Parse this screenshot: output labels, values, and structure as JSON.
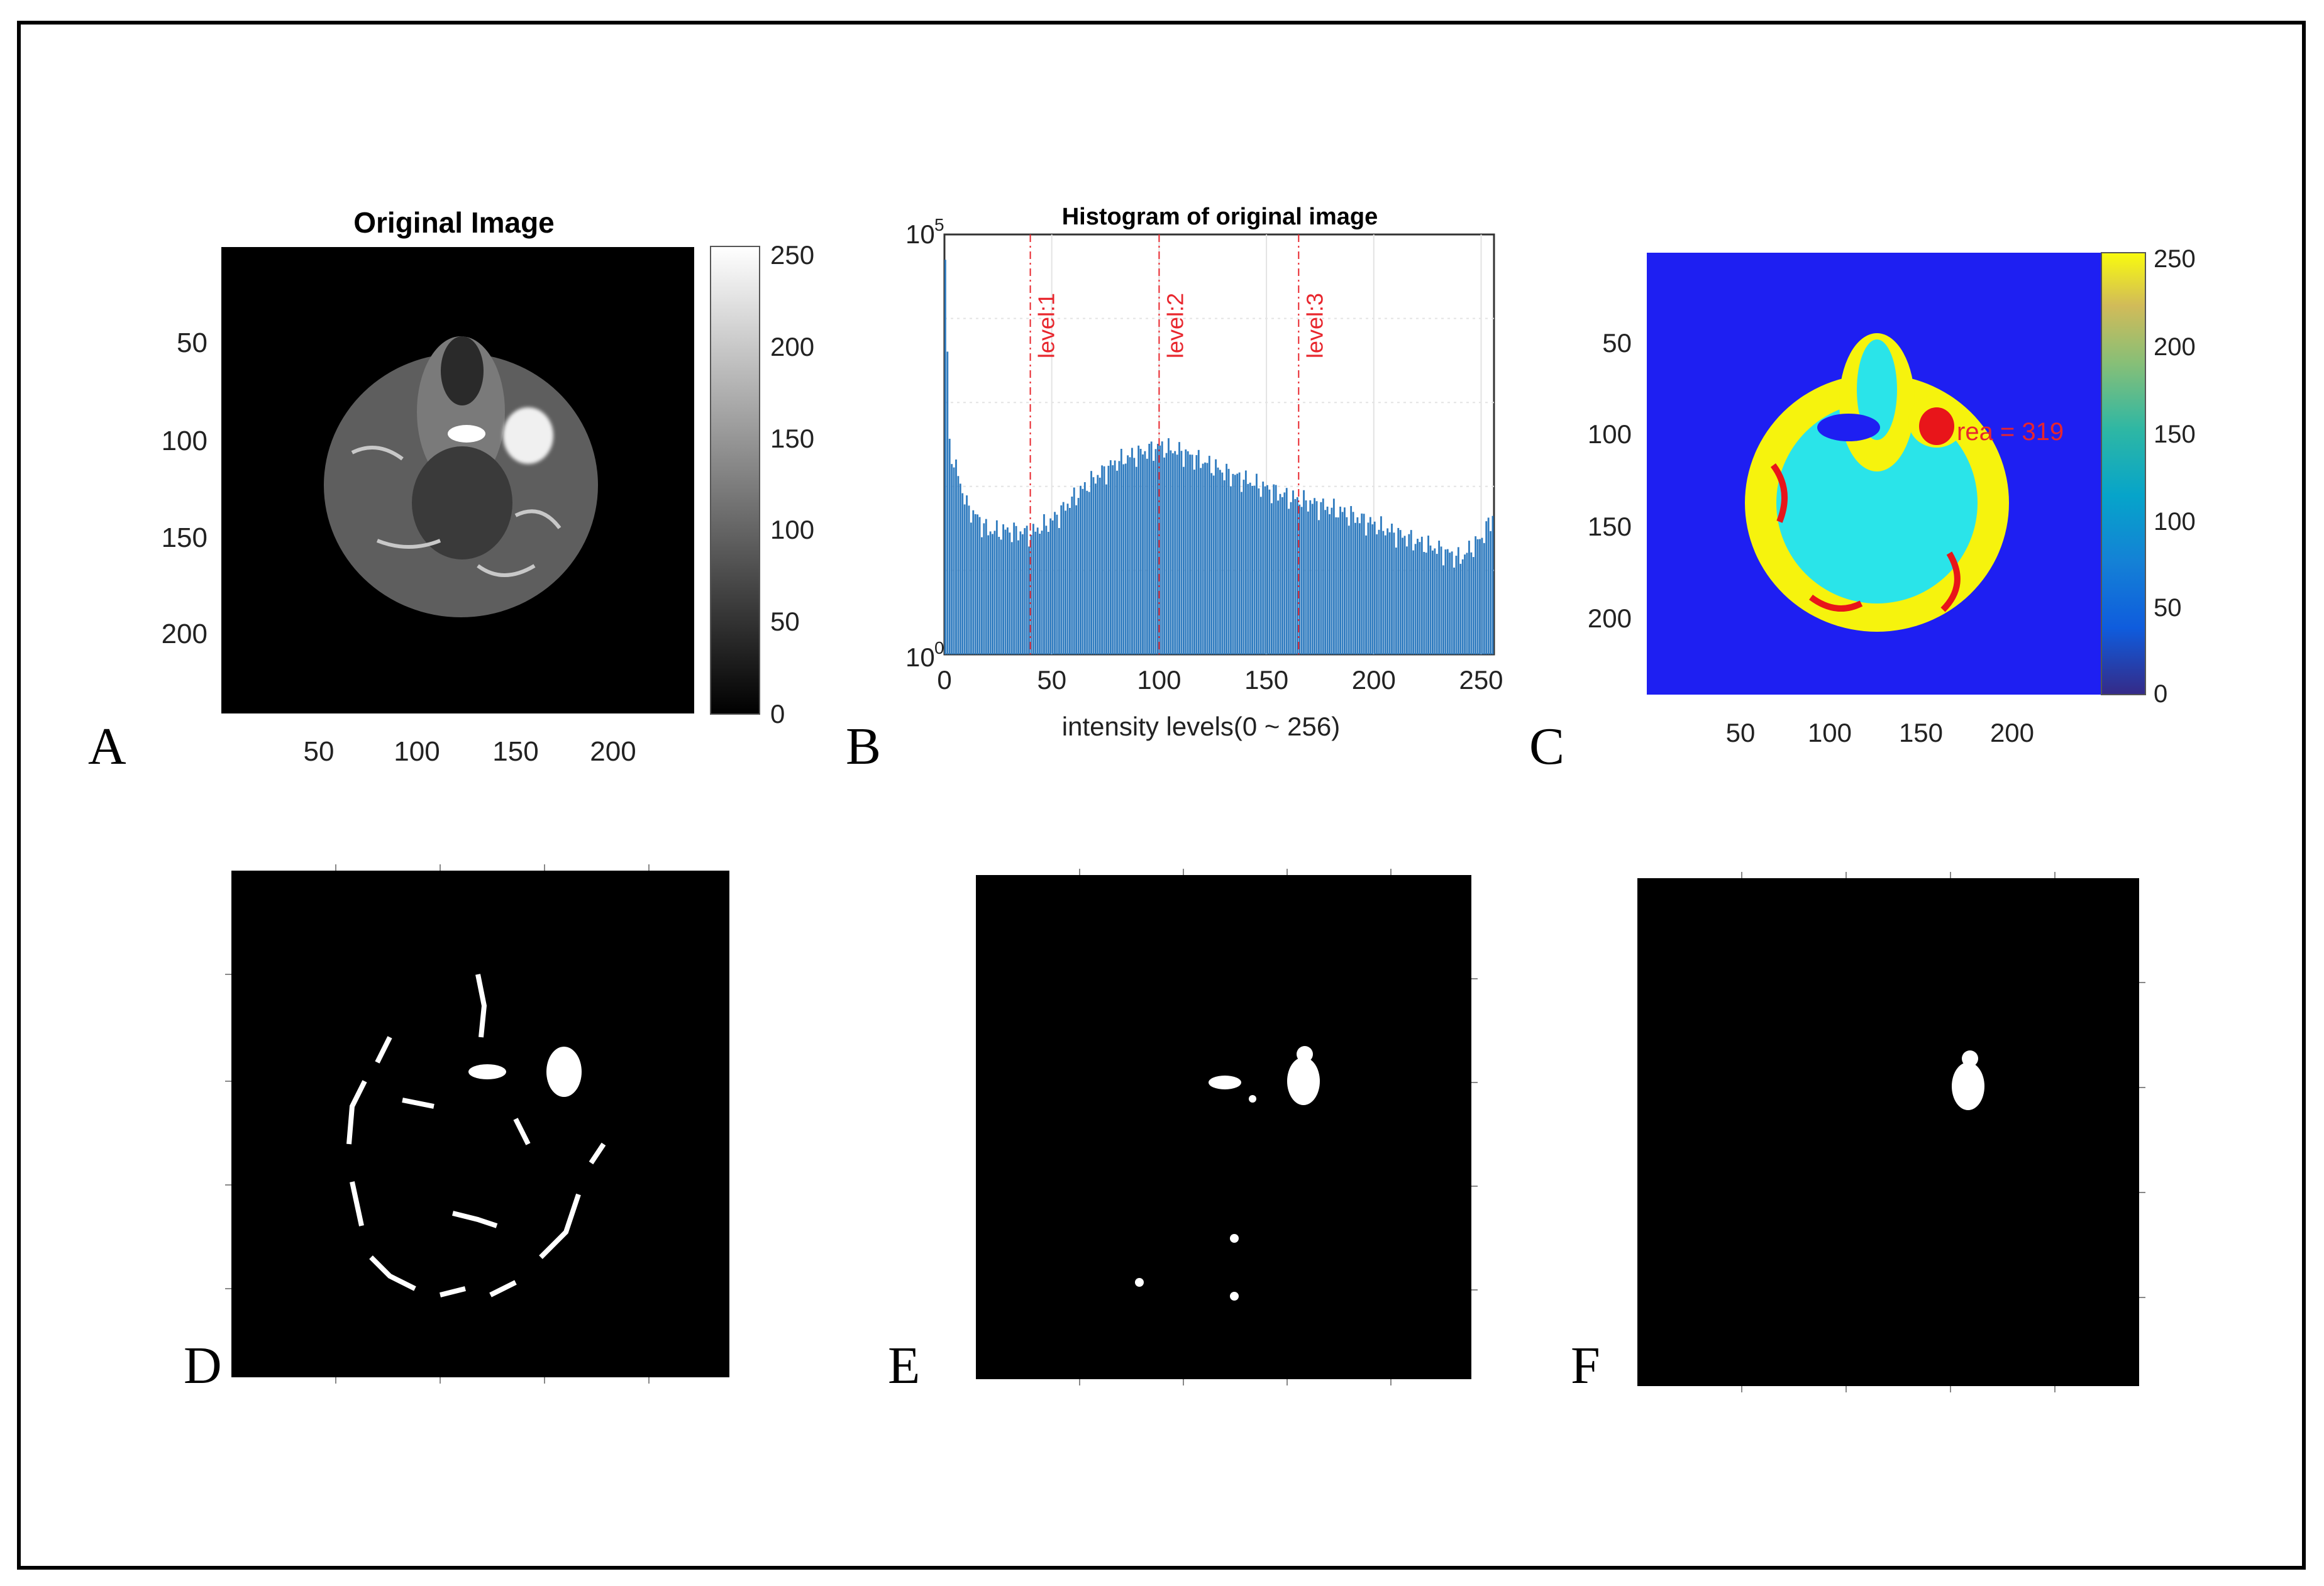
{
  "panel_labels": [
    "A",
    "B",
    "C",
    "D",
    "E",
    "F"
  ],
  "chart_data": [
    {
      "panel": "A",
      "type": "heatmap",
      "title": "Original Image",
      "colormap": "gray",
      "x_ticks": [
        "50",
        "100",
        "150",
        "200"
      ],
      "y_ticks": [
        "50",
        "100",
        "150",
        "200"
      ],
      "xlim": [
        1,
        240
      ],
      "ylim": [
        1,
        240
      ],
      "colorbar_ticks": [
        "0",
        "50",
        "100",
        "150",
        "200",
        "250"
      ],
      "colorbar_range": [
        0,
        255
      ]
    },
    {
      "panel": "B",
      "type": "bar",
      "title": "Histogram of original image",
      "xlabel": "intensity levels(0 ~ 256)",
      "ylabel": "",
      "yscale": "log",
      "ylim": [
        1,
        100000
      ],
      "xlim": [
        0,
        256
      ],
      "x_ticks": [
        "0",
        "50",
        "100",
        "150",
        "200",
        "250"
      ],
      "y_tick_bases": [
        "10",
        "10"
      ],
      "y_tick_exponents": [
        "0",
        "5"
      ],
      "color": "#2F7BBF",
      "x": [
        0,
        2,
        10,
        20,
        30,
        40,
        50,
        60,
        70,
        80,
        90,
        100,
        110,
        120,
        130,
        140,
        150,
        160,
        170,
        180,
        190,
        200,
        210,
        220,
        230,
        240,
        250,
        255
      ],
      "values": [
        50000,
        300,
        60,
        30,
        30,
        28,
        40,
        75,
        130,
        200,
        250,
        300,
        260,
        200,
        150,
        120,
        95,
        75,
        65,
        55,
        45,
        35,
        28,
        22,
        18,
        14,
        25,
        45
      ],
      "annotations": [
        {
          "label": "level:1",
          "x": 40
        },
        {
          "label": "level:2",
          "x": 100
        },
        {
          "label": "level:3",
          "x": 165
        }
      ],
      "annotation_color": "#E8262D"
    },
    {
      "panel": "C",
      "type": "heatmap",
      "title": "",
      "colormap": "parula",
      "x_ticks": [
        "50",
        "100",
        "150",
        "200"
      ],
      "y_ticks": [
        "50",
        "100",
        "150",
        "200"
      ],
      "xlim": [
        1,
        240
      ],
      "ylim": [
        1,
        240
      ],
      "colorbar_ticks": [
        "0",
        "50",
        "100",
        "150",
        "200",
        "250"
      ],
      "colorbar_range": [
        0,
        255
      ],
      "annotation": "rea = 319",
      "annotation_color": "#E8262D"
    },
    {
      "panel": "D",
      "type": "heatmap",
      "title": "",
      "colormap": "binary"
    },
    {
      "panel": "E",
      "type": "heatmap",
      "title": "",
      "colormap": "binary"
    },
    {
      "panel": "F",
      "type": "heatmap",
      "title": "",
      "colormap": "binary"
    }
  ]
}
